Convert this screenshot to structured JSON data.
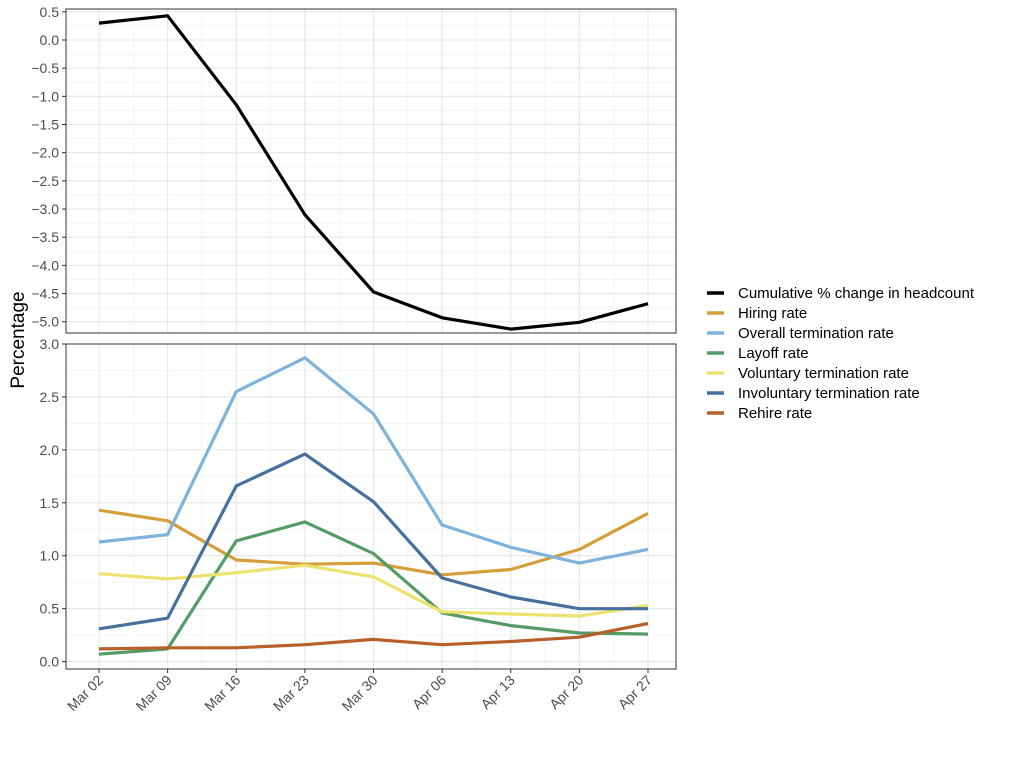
{
  "chart_data": {
    "type": "line",
    "ylabel": "Percentage",
    "x": [
      "Mar 02",
      "Mar 09",
      "Mar 16",
      "Mar 23",
      "Mar 30",
      "Apr 06",
      "Apr 13",
      "Apr 20",
      "Apr 27"
    ],
    "legend_position": "right",
    "grid": true,
    "panels": [
      {
        "ylim": [
          -5.2,
          0.55
        ],
        "yticks": [
          0.5,
          0.0,
          -0.5,
          -1.0,
          -1.5,
          -2.0,
          -2.5,
          -3.0,
          -3.5,
          -4.0,
          -4.5,
          -5.0
        ],
        "ytick_labels": [
          "0.5",
          "0.0",
          "−0.5",
          "−1.0",
          "−1.5",
          "−2.0",
          "−2.5",
          "−3.0",
          "−3.5",
          "−4.0",
          "−4.5",
          "−5.0"
        ],
        "series": [
          {
            "name": "Cumulative % change in headcount",
            "color": "#000000",
            "values": [
              0.3,
              0.43,
              -1.15,
              -3.1,
              -4.47,
              -4.93,
              -5.13,
              -5.01,
              -4.68
            ]
          }
        ]
      },
      {
        "ylim": [
          -0.07,
          3.0
        ],
        "yticks": [
          0.0,
          0.5,
          1.0,
          1.5,
          2.0,
          2.5,
          3.0
        ],
        "ytick_labels": [
          "0.0",
          "0.5",
          "1.0",
          "1.5",
          "2.0",
          "2.5",
          "3.0"
        ],
        "series": [
          {
            "name": "Hiring rate",
            "color": "#D49F3A",
            "values": [
              1.43,
              1.33,
              0.96,
              0.92,
              0.93,
              0.82,
              0.87,
              1.06,
              1.4
            ]
          },
          {
            "name": "Overall termination rate",
            "color": "#7EB3DC",
            "values": [
              1.13,
              1.2,
              2.55,
              2.87,
              2.34,
              1.29,
              1.08,
              0.93,
              1.06
            ]
          },
          {
            "name": "Layoff rate",
            "color": "#549C65",
            "values": [
              0.07,
              0.12,
              1.14,
              1.32,
              1.02,
              0.46,
              0.34,
              0.27,
              0.26
            ]
          },
          {
            "name": "Voluntary termination rate",
            "color": "#EEE26E",
            "values": [
              0.83,
              0.78,
              0.84,
              0.91,
              0.8,
              0.47,
              0.45,
              0.43,
              0.53
            ]
          },
          {
            "name": "Involuntary termination rate",
            "color": "#46709E",
            "values": [
              0.31,
              0.41,
              1.66,
              1.96,
              1.51,
              0.79,
              0.61,
              0.5,
              0.5
            ]
          },
          {
            "name": "Rehire rate",
            "color": "#B7602A",
            "values": [
              0.12,
              0.13,
              0.13,
              0.16,
              0.21,
              0.16,
              0.19,
              0.23,
              0.36
            ]
          }
        ]
      }
    ],
    "legend": [
      {
        "label": "Cumulative % change in headcount",
        "color": "#000000"
      },
      {
        "label": "Hiring rate",
        "color": "#D49F3A"
      },
      {
        "label": "Overall termination rate",
        "color": "#7EB3DC"
      },
      {
        "label": "Layoff rate",
        "color": "#549C65"
      },
      {
        "label": "Voluntary termination rate",
        "color": "#EEE26E"
      },
      {
        "label": "Involuntary termination rate",
        "color": "#46709E"
      },
      {
        "label": "Rehire rate",
        "color": "#B7602A"
      }
    ]
  }
}
